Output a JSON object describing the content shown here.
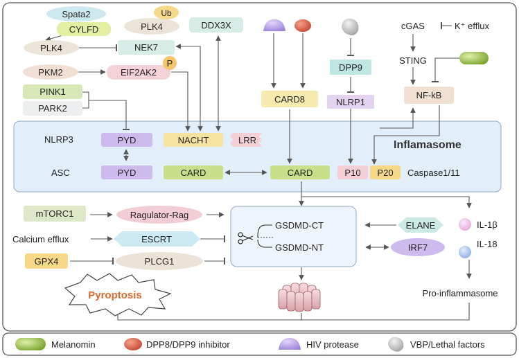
{
  "nodes": {
    "spata2": "Spata2",
    "ub": "Ub",
    "cylfd": "CYLFD",
    "plk4_top": "PLK4",
    "ddx3x": "DDX3X",
    "plk4": "PLK4",
    "nek7": "NEK7",
    "pkm2": "PKM2",
    "eif2ak2": "EIF2AK2",
    "p": "P",
    "pink1": "PINK1",
    "park2": "PARK2",
    "dpp9": "DPP9",
    "card8": "CARD8",
    "nlrp1": "NLRP1",
    "cgas": "cGAS",
    "k_efflux": "K⁺ efflux",
    "sting": "STING",
    "nfkb": "NF-kB",
    "nlrp3": "NLRP3",
    "pyd1": "PYD",
    "nacht": "NACHT",
    "lrr": "LRR",
    "inflamasome": "Inflamasome",
    "asc": "ASC",
    "pyd2": "PYD",
    "card_asc": "CARD",
    "card_casp": "CARD",
    "p10": "P10",
    "p20": "P20",
    "caspase": "Caspase1/11",
    "mtorc1": "mTORC1",
    "ragulator": "Ragulator-Rag",
    "calcium": "Calcium efflux",
    "escrt": "ESCRT",
    "gpx4": "GPX4",
    "plcg1": "PLCG1",
    "gsdmd_ct": "GSDMD-CT",
    "gsdmd_nt": "GSDMD-NT",
    "elane": "ELANE",
    "irf7": "IRF7",
    "il1b": "IL-1β",
    "il18": "IL-18",
    "pro_inflammasome": "Pro-inflammasome",
    "pyroptosis": "Pyroptosis"
  },
  "legend": {
    "melanomin": "Melanomin",
    "dpp_inhibitor": "DPP8/DPP9 inhibitor",
    "hiv_protease": "HIV protease",
    "vbp": "VBP/Lethal factors"
  },
  "colors": {
    "frame": "#555555",
    "inflammasome_bg": "#e3eefb",
    "gsdmd_bg": "#eef4fc",
    "green": "#c9df8a",
    "yellow": "#f6e3a1",
    "purple": "#cdbbee",
    "pink": "#f5cfd6",
    "teal": "#cfe9e6",
    "beige": "#eedfd2",
    "orange_text": "#e0672b"
  }
}
